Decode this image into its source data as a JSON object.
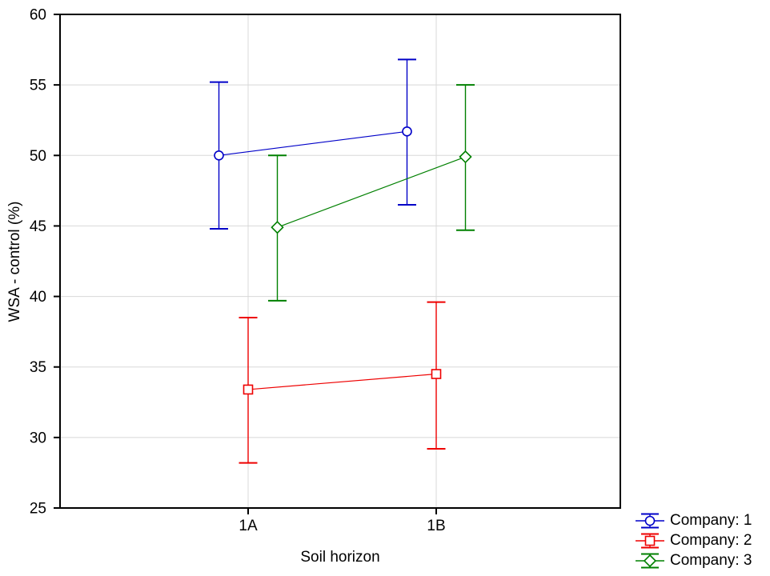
{
  "figure": {
    "background_color": "#ffffff",
    "frame_color": "#000000",
    "gridline_color": "#d8d8d8"
  },
  "chart_data": {
    "type": "line",
    "subtype": "means-with-95ci-error-bars",
    "title": "",
    "xlabel": "Soil horizon",
    "ylabel": "WSA - control (%)",
    "categories": [
      "1A",
      "1B"
    ],
    "y_ticks": [
      25,
      30,
      35,
      40,
      45,
      50,
      55,
      60
    ],
    "ylim": [
      25,
      60
    ],
    "grid": "horizontal gridlines at every y tick, vertical gridline at each category",
    "legend_position": "bottom-right outside plot",
    "series": [
      {
        "name": "Company: 1",
        "color": "#0000c8",
        "marker": "circle",
        "points": [
          {
            "category": "1A",
            "mean": 50.0,
            "ci_low": 44.8,
            "ci_high": 55.2
          },
          {
            "category": "1B",
            "mean": 51.7,
            "ci_low": 46.5,
            "ci_high": 56.8
          }
        ]
      },
      {
        "name": "Company: 2",
        "color": "#ee0000",
        "marker": "square",
        "points": [
          {
            "category": "1A",
            "mean": 33.4,
            "ci_low": 28.2,
            "ci_high": 38.5
          },
          {
            "category": "1B",
            "mean": 34.5,
            "ci_low": 29.2,
            "ci_high": 39.6
          }
        ]
      },
      {
        "name": "Company: 3",
        "color": "#008000",
        "marker": "diamond",
        "points": [
          {
            "category": "1A",
            "mean": 44.9,
            "ci_low": 39.7,
            "ci_high": 50.0
          },
          {
            "category": "1B",
            "mean": 49.9,
            "ci_low": 44.7,
            "ci_high": 55.0
          }
        ]
      }
    ]
  }
}
